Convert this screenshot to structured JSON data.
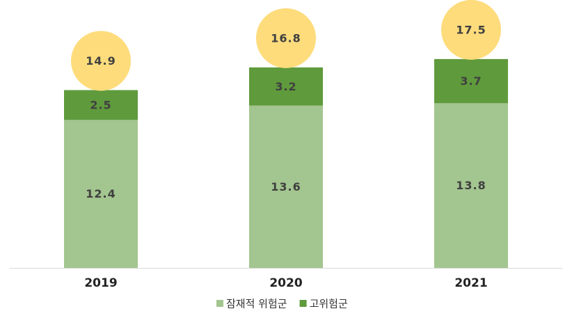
{
  "chart_data": {
    "type": "stacked-bar",
    "categories": [
      "2019",
      "2020",
      "2021"
    ],
    "series": [
      {
        "name": "잠재적 위험군",
        "color": "#a3c58f",
        "values": [
          12.4,
          13.6,
          13.8
        ]
      },
      {
        "name": "고위험군",
        "color": "#5f9a3c",
        "values": [
          2.5,
          3.2,
          3.7
        ]
      }
    ],
    "totals": [
      14.9,
      16.8,
      17.5
    ],
    "total_color": "#fedc7c",
    "legend": "bottom"
  }
}
